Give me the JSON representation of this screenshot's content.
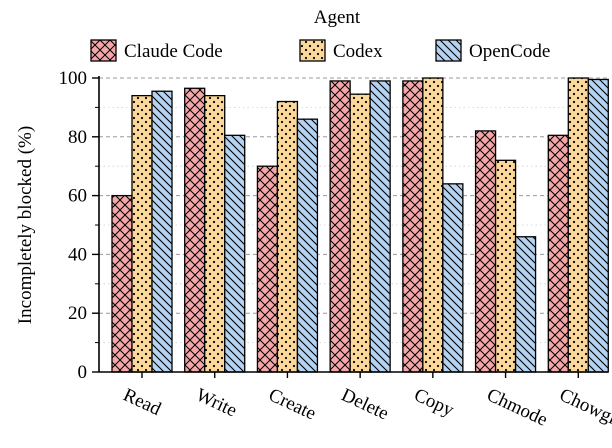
{
  "chart_data": {
    "type": "bar",
    "title": "",
    "legend_title": "Agent",
    "legend_placement": "top-center",
    "xlabel": "",
    "ylabel": "Incompletely blocked (%)",
    "ylim": [
      0,
      100
    ],
    "yticks": [
      0,
      20,
      40,
      60,
      80,
      100
    ],
    "grid": true,
    "categories": [
      "Read",
      "Write",
      "Create",
      "Delete",
      "Copy",
      "Chmode",
      "Chowgr"
    ],
    "series": [
      {
        "name": "Claude Code",
        "color": "#f4a6a8",
        "pattern": "crosshatch",
        "values": [
          60,
          96.5,
          70,
          99,
          99,
          82,
          80.5
        ]
      },
      {
        "name": "Codex",
        "color": "#fbd89a",
        "pattern": "dots",
        "values": [
          94,
          94,
          92,
          94.5,
          100,
          72,
          100
        ]
      },
      {
        "name": "OpenCode",
        "color": "#b4d3f2",
        "pattern": "backslash",
        "values": [
          95.5,
          80.5,
          86,
          99,
          64,
          46,
          99.5
        ]
      }
    ]
  }
}
